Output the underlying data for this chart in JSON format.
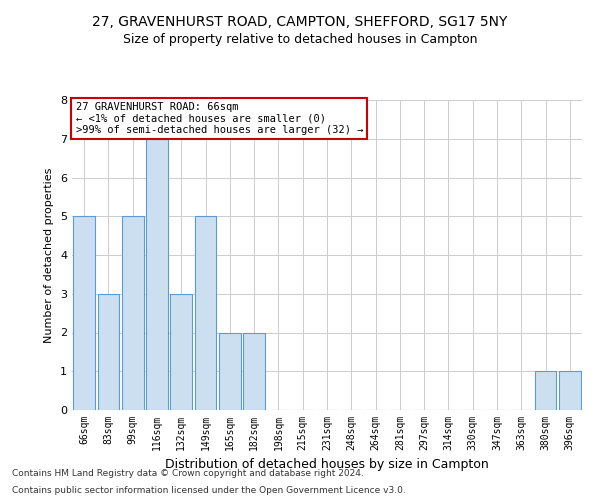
{
  "title1": "27, GRAVENHURST ROAD, CAMPTON, SHEFFORD, SG17 5NY",
  "title2": "Size of property relative to detached houses in Campton",
  "xlabel": "Distribution of detached houses by size in Campton",
  "ylabel": "Number of detached properties",
  "categories": [
    "66sqm",
    "83sqm",
    "99sqm",
    "116sqm",
    "132sqm",
    "149sqm",
    "165sqm",
    "182sqm",
    "198sqm",
    "215sqm",
    "231sqm",
    "248sqm",
    "264sqm",
    "281sqm",
    "297sqm",
    "314sqm",
    "330sqm",
    "347sqm",
    "363sqm",
    "380sqm",
    "396sqm"
  ],
  "values": [
    5,
    3,
    5,
    7,
    3,
    5,
    2,
    2,
    0,
    0,
    0,
    0,
    0,
    0,
    0,
    0,
    0,
    0,
    0,
    1,
    1
  ],
  "bar_color": "#ccdff0",
  "bar_edge_color": "#5b9bd5",
  "annotation_title": "27 GRAVENHURST ROAD: 66sqm",
  "annotation_line1": "← <1% of detached houses are smaller (0)",
  "annotation_line2": ">99% of semi-detached houses are larger (32) →",
  "annotation_box_color": "#ffffff",
  "annotation_box_edge_color": "#cc0000",
  "ylim": [
    0,
    8
  ],
  "yticks": [
    0,
    1,
    2,
    3,
    4,
    5,
    6,
    7,
    8
  ],
  "footer1": "Contains HM Land Registry data © Crown copyright and database right 2024.",
  "footer2": "Contains public sector information licensed under the Open Government Licence v3.0.",
  "bg_color": "#ffffff",
  "grid_color": "#cccccc",
  "title1_fontsize": 10,
  "title2_fontsize": 9,
  "xlabel_fontsize": 9,
  "ylabel_fontsize": 8,
  "tick_fontsize": 7,
  "footer_fontsize": 6.5,
  "ann_fontsize": 7.5
}
